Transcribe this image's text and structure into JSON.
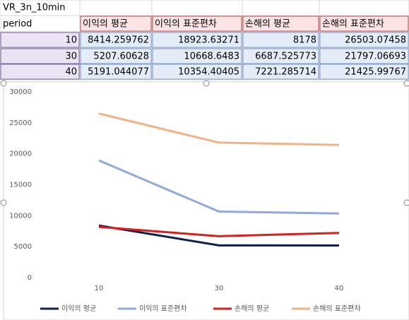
{
  "table": {
    "title": "VR_3n_10min",
    "header": [
      "period",
      "이익의 평균",
      "이익의 표준편차",
      "손해의 평균",
      "손해의 표준편차"
    ],
    "rows": [
      [
        10,
        8414.259762,
        18923.63271,
        8178,
        26503.07458
      ],
      [
        30,
        5207.60628,
        10668.6483,
        6687.525773,
        21797.06693
      ],
      [
        40,
        5191.044077,
        10354.40405,
        7221.285714,
        21425.99767
      ]
    ]
  },
  "chart_data": {
    "type": "line",
    "categories": [
      "10",
      "30",
      "40"
    ],
    "series": [
      {
        "name": "이익의 평균",
        "color": "#0f1f4f",
        "values": [
          8414.259762,
          5207.60628,
          5191.044077
        ]
      },
      {
        "name": "이익의 표준편차",
        "color": "#8faadc",
        "values": [
          18923.63271,
          10668.6483,
          10354.40405
        ]
      },
      {
        "name": "손해의 평균",
        "color": "#d91e1e",
        "values": [
          8178,
          6687.525773,
          7221.285714
        ]
      },
      {
        "name": "손해의 표준편차",
        "color": "#f4b183",
        "values": [
          26503.07458,
          21797.06693,
          21425.99767
        ]
      }
    ],
    "ylim": [
      0,
      30000
    ],
    "yticks": [
      0,
      5000,
      10000,
      15000,
      20000,
      25000,
      30000
    ],
    "grid": false,
    "legend": "bottom"
  }
}
